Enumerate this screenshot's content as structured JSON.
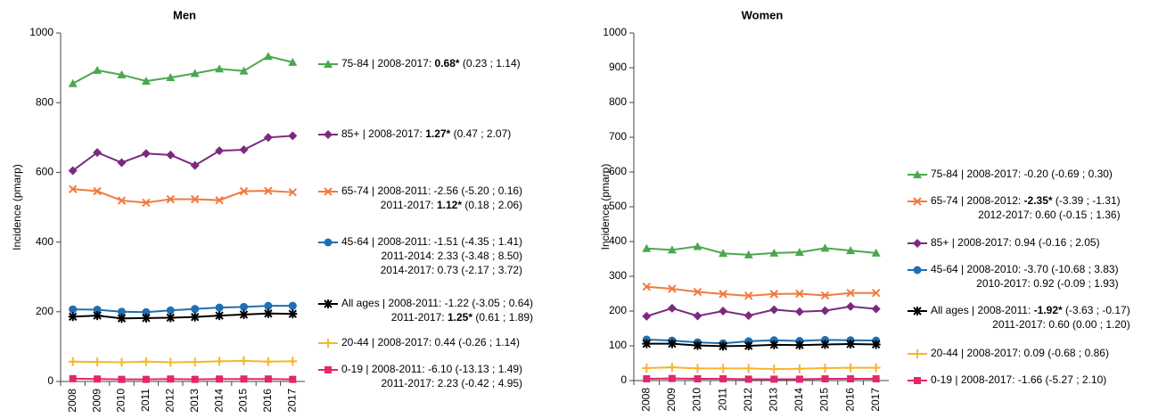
{
  "chart_data": [
    {
      "type": "line",
      "title": "Men",
      "y_label": "Incidence (pmarp)",
      "categories": [
        "2008",
        "2009",
        "2010",
        "2011",
        "2012",
        "2013",
        "2014",
        "2015",
        "2016",
        "2017"
      ],
      "ylim": [
        0,
        1000
      ],
      "yticks": [
        0,
        200,
        400,
        600,
        800,
        1000
      ],
      "series": [
        {
          "name": "75-84",
          "color": "#4aa84f",
          "marker": "triangle",
          "values": [
            855,
            893,
            880,
            862,
            872,
            884,
            897,
            891,
            933,
            916
          ],
          "legend": [
            [
              {
                "text": " | 2008-2017: "
              },
              {
                "text": "0.68*",
                "bold": true
              },
              {
                "text": " (0.23 ; 1.14)"
              }
            ]
          ]
        },
        {
          "name": "85+",
          "color": "#7b2a80",
          "marker": "diamond",
          "values": [
            605,
            657,
            628,
            654,
            650,
            620,
            662,
            665,
            700,
            705
          ],
          "legend": [
            [
              {
                "text": " | 2008-2017: "
              },
              {
                "text": "1.27*",
                "bold": true
              },
              {
                "text": " (0.47 ; 2.07)"
              }
            ]
          ]
        },
        {
          "name": "65-74",
          "color": "#f27a3f",
          "marker": "x",
          "values": [
            552,
            546,
            519,
            513,
            523,
            523,
            520,
            546,
            547,
            543
          ],
          "legend": [
            [
              {
                "text": " | 2008-2011: -2.56 (-5.20 ; 0.16)"
              }
            ],
            [
              {
                "text": "2011-2017: "
              },
              {
                "text": "1.12*",
                "bold": true
              },
              {
                "text": " (0.18 ; 2.06)"
              }
            ]
          ]
        },
        {
          "name": "45-64",
          "color": "#1f6fb2",
          "marker": "circle",
          "values": [
            207,
            206,
            200,
            199,
            204,
            208,
            212,
            214,
            217,
            217
          ],
          "legend": [
            [
              {
                "text": " | 2008-2011: -1.51 (-4.35 ; 1.41)"
              }
            ],
            [
              {
                "text": "2011-2014: 2.33 (-3.48 ; 8.50)"
              }
            ],
            [
              {
                "text": "2014-2017: 0.73 (-2.17 ; 3.72)"
              }
            ]
          ]
        },
        {
          "name": "All ages",
          "color": "#000000",
          "marker": "star",
          "values": [
            186,
            189,
            181,
            182,
            183,
            185,
            189,
            192,
            195,
            194
          ],
          "legend": [
            [
              {
                "text": " | 2008-2011: -1.22 (-3.05 ; 0.64)"
              }
            ],
            [
              {
                "text": "2011-2017: "
              },
              {
                "text": "1.25*",
                "bold": true
              },
              {
                "text": " (0.61 ; 1.89)"
              }
            ]
          ]
        },
        {
          "name": "20-44",
          "color": "#f6b52e",
          "marker": "plus",
          "values": [
            57,
            56,
            55,
            57,
            55,
            56,
            58,
            59,
            57,
            58
          ],
          "legend": [
            [
              {
                "text": " | 2008-2017: 0.44 (-0.26 ; 1.14)"
              }
            ]
          ]
        },
        {
          "name": "0-19",
          "color": "#e3266d",
          "marker": "square",
          "values": [
            8,
            7,
            6,
            6,
            7,
            6,
            7,
            7,
            7,
            6
          ],
          "legend": [
            [
              {
                "text": " | 2008-2011: -6.10 (-13.13 ; 1.49)"
              }
            ],
            [
              {
                "text": "2011-2017: 2.23 (-0.42 ; 4.95)"
              }
            ]
          ]
        }
      ]
    },
    {
      "type": "line",
      "title": "Women",
      "y_label": "Incidence (pmarp)",
      "categories": [
        "2008",
        "2009",
        "2010",
        "2011",
        "2012",
        "2013",
        "2014",
        "2015",
        "2016",
        "2017"
      ],
      "ylim": [
        0,
        1000
      ],
      "yticks": [
        0,
        100,
        200,
        300,
        400,
        500,
        600,
        700,
        800,
        900,
        1000
      ],
      "series": [
        {
          "name": "75-84",
          "color": "#4aa84f",
          "marker": "triangle",
          "values": [
            380,
            376,
            386,
            366,
            362,
            367,
            369,
            381,
            374,
            367
          ],
          "legend": [
            [
              {
                "text": " | 2008-2017: -0.20 (-0.69 ; 0.30)"
              }
            ]
          ]
        },
        {
          "name": "65-74",
          "color": "#f27a3f",
          "marker": "x",
          "values": [
            270,
            264,
            255,
            249,
            244,
            249,
            250,
            245,
            252,
            252
          ],
          "legend": [
            [
              {
                "text": " | 2008-2012: "
              },
              {
                "text": "-2.35*",
                "bold": true
              },
              {
                "text": " (-3.39 ; -1.31)"
              }
            ],
            [
              {
                "text": "2012-2017: 0.60 (-0.15 ; 1.36)"
              }
            ]
          ]
        },
        {
          "name": "85+",
          "color": "#7b2a80",
          "marker": "diamond",
          "values": [
            185,
            208,
            186,
            200,
            187,
            204,
            198,
            201,
            213,
            206
          ],
          "legend": [
            [
              {
                "text": " | 2008-2017: 0.94 (-0.16 ; 2.05)"
              }
            ]
          ]
        },
        {
          "name": "45-64",
          "color": "#1f6fb2",
          "marker": "circle",
          "values": [
            118,
            115,
            110,
            107,
            113,
            116,
            114,
            117,
            116,
            115
          ],
          "legend": [
            [
              {
                "text": " | 2008-2010: -3.70 (-10.68 ; 3.83)"
              }
            ],
            [
              {
                "text": "2010-2017: 0.92 (-0.09 ; 1.93)"
              }
            ]
          ]
        },
        {
          "name": "All ages",
          "color": "#000000",
          "marker": "star",
          "values": [
            106,
            106,
            101,
            99,
            100,
            103,
            102,
            104,
            105,
            104
          ],
          "legend": [
            [
              {
                "text": " | 2008-2011: "
              },
              {
                "text": "-1.92*",
                "bold": true
              },
              {
                "text": " (-3.63 ; -0.17)"
              }
            ],
            [
              {
                "text": "2011-2017: 0.60 (0.00 ; 1.20)"
              }
            ]
          ]
        },
        {
          "name": "20-44",
          "color": "#f6b52e",
          "marker": "plus",
          "values": [
            36,
            38,
            35,
            35,
            35,
            33,
            34,
            36,
            37,
            37
          ],
          "legend": [
            [
              {
                "text": " | 2008-2017: 0.09 (-0.68 ; 0.86)"
              }
            ]
          ]
        },
        {
          "name": "0-19",
          "color": "#e3266d",
          "marker": "square",
          "values": [
            5,
            6,
            5,
            5,
            4,
            4,
            4,
            5,
            5,
            5
          ],
          "legend": [
            [
              {
                "text": " | 2008-2017: -1.66 (-5.27 ; 2.10)"
              }
            ]
          ]
        }
      ]
    }
  ]
}
